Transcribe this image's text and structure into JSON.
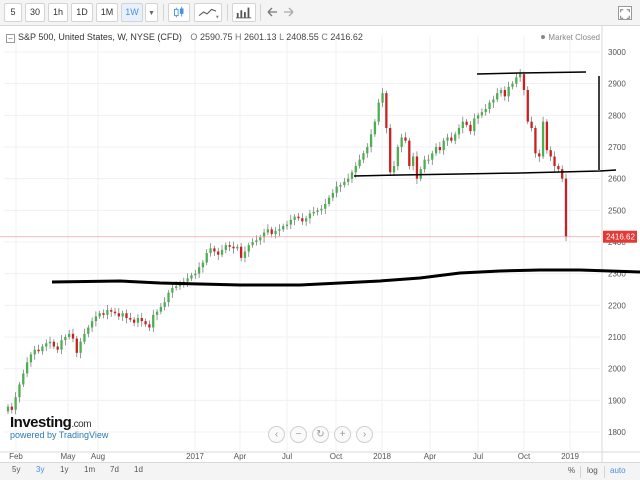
{
  "toolbar": {
    "intervals": [
      "5",
      "30",
      "1h",
      "1D",
      "1M",
      "1W"
    ],
    "active_interval": "1W"
  },
  "legend": {
    "symbol": "S&P 500, United States, W, NYSE (CFD)",
    "open_label": "O",
    "open": "2590.75",
    "high_label": "H",
    "high": "2601.13",
    "low_label": "L",
    "low": "2408.55",
    "close_label": "C",
    "close": "2416.62",
    "toggle": "−"
  },
  "market_status": "Market Closed",
  "brand": {
    "name": "Investing",
    "suffix": ".com",
    "powered": "powered by TradingView"
  },
  "bottom_bar": {
    "ranges": [
      "5y",
      "3y",
      "1y",
      "1m",
      "7d",
      "1d"
    ],
    "active_range": "3y",
    "scale": [
      "%",
      "log",
      "auto"
    ],
    "active_scale": "auto"
  },
  "colors": {
    "up": "#4caf50",
    "down": "#cc1f1f",
    "last_price_bg": "#e53935",
    "grid": "#eef0f3",
    "drawing": "#000000"
  },
  "chart_data": {
    "type": "candlestick",
    "title": "S&P 500, United States, W, NYSE (CFD)",
    "y_ticks": [
      1800,
      1900,
      2000,
      2100,
      2200,
      2300,
      2400,
      2500,
      2600,
      2700,
      2800,
      2900,
      3000
    ],
    "ylim": [
      1750,
      3020
    ],
    "x_ticks": [
      "Feb",
      "May",
      "Aug",
      "2017",
      "Apr",
      "Jul",
      "Oct",
      "2018",
      "Apr",
      "Jul",
      "Oct",
      "2019"
    ],
    "last_price": "2416.62",
    "closes": [
      1880,
      1870,
      1910,
      1950,
      1985,
      2020,
      2045,
      2060,
      2055,
      2070,
      2080,
      2085,
      2070,
      2060,
      2090,
      2100,
      2110,
      2095,
      2050,
      2085,
      2110,
      2130,
      2150,
      2165,
      2175,
      2170,
      2185,
      2180,
      2175,
      2165,
      2175,
      2160,
      2155,
      2145,
      2160,
      2150,
      2140,
      2130,
      2170,
      2180,
      2195,
      2210,
      2240,
      2255,
      2260,
      2270,
      2275,
      2285,
      2295,
      2300,
      2320,
      2335,
      2365,
      2380,
      2370,
      2360,
      2375,
      2390,
      2385,
      2380,
      2385,
      2350,
      2370,
      2390,
      2400,
      2405,
      2415,
      2430,
      2440,
      2425,
      2435,
      2440,
      2450,
      2455,
      2470,
      2480,
      2475,
      2465,
      2475,
      2490,
      2495,
      2500,
      2505,
      2520,
      2540,
      2555,
      2575,
      2580,
      2590,
      2600,
      2620,
      2640,
      2660,
      2680,
      2700,
      2740,
      2780,
      2840,
      2870,
      2760,
      2620,
      2640,
      2700,
      2730,
      2720,
      2640,
      2670,
      2600,
      2630,
      2660,
      2660,
      2680,
      2700,
      2690,
      2720,
      2730,
      2720,
      2740,
      2760,
      2780,
      2770,
      2750,
      2790,
      2800,
      2810,
      2820,
      2840,
      2850,
      2870,
      2880,
      2860,
      2890,
      2900,
      2920,
      2930,
      2880,
      2780,
      2760,
      2680,
      2670,
      2780,
      2690,
      2670,
      2640,
      2630,
      2600,
      2416.62
    ]
  }
}
